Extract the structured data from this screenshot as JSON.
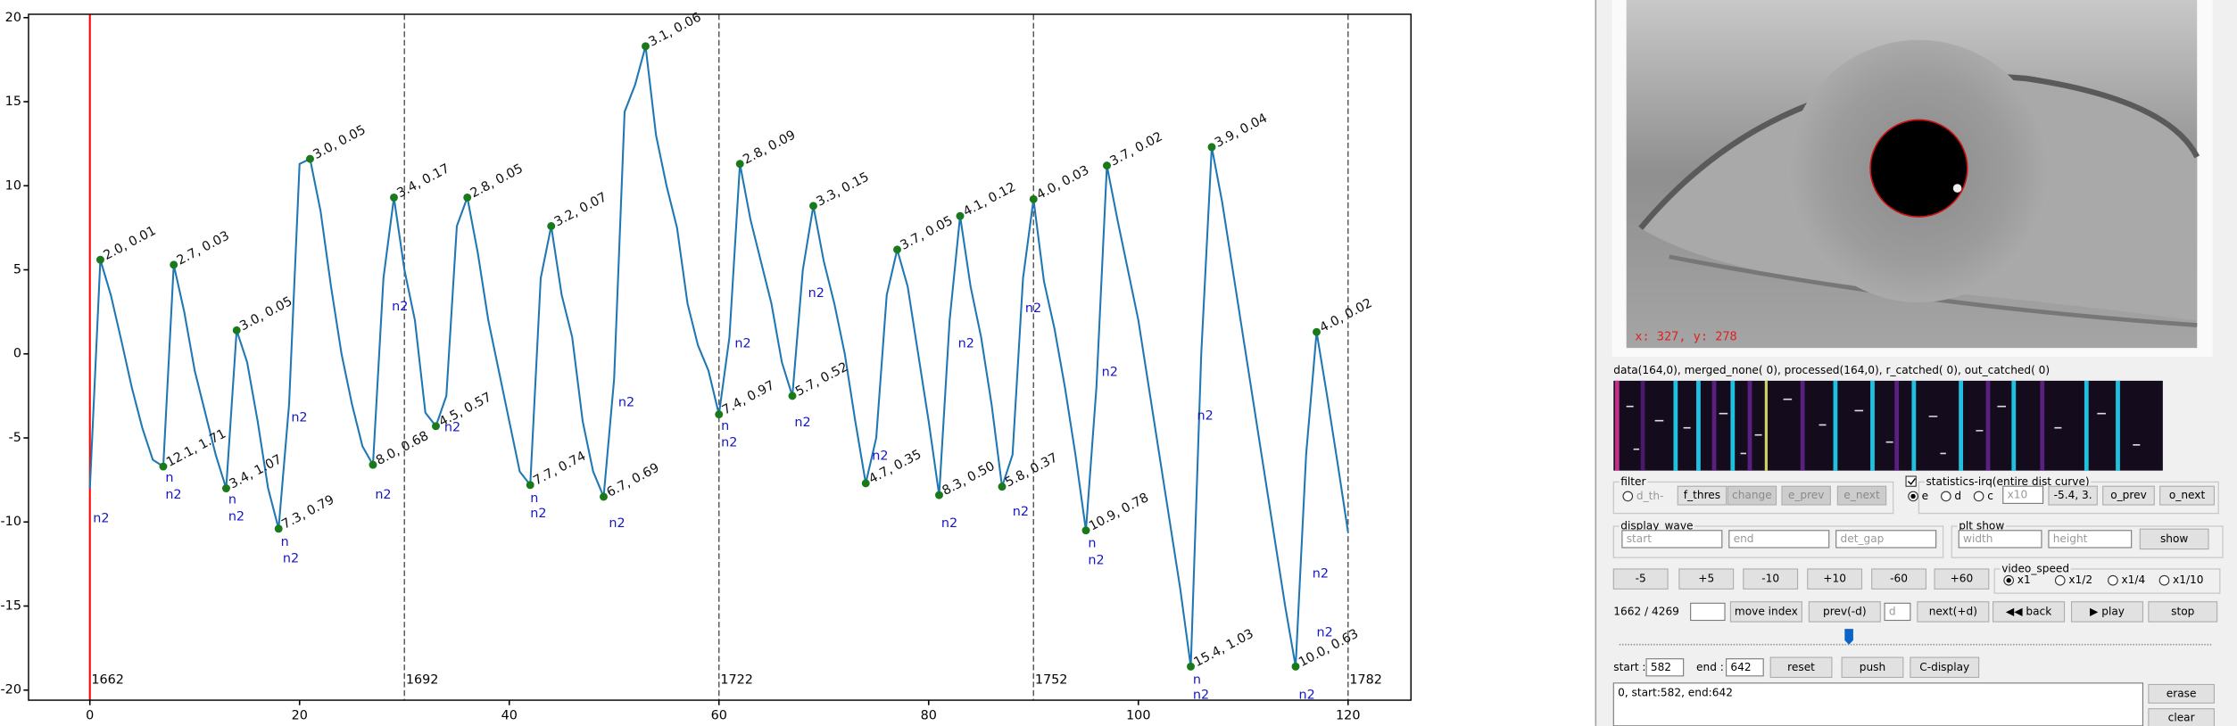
{
  "chart_data": {
    "type": "line",
    "x": [
      0,
      1,
      2,
      3,
      4,
      5,
      6,
      7,
      8,
      9,
      10,
      11,
      12,
      13,
      14,
      15,
      16,
      17,
      18,
      19,
      20,
      21,
      22,
      23,
      24,
      25,
      26,
      27,
      28,
      29,
      30,
      31,
      32,
      33,
      34,
      35,
      36,
      37,
      38,
      39,
      40,
      41,
      42,
      43,
      44,
      45,
      46,
      47,
      48,
      49,
      50,
      51,
      52,
      53,
      54,
      55,
      56,
      57,
      58,
      59,
      60,
      61,
      62,
      63,
      64,
      65,
      66,
      67,
      68,
      69,
      70,
      71,
      72,
      73,
      74,
      75,
      76,
      77,
      78,
      79,
      80,
      81,
      82,
      83,
      84,
      85,
      86,
      87,
      88,
      89,
      90,
      91,
      92,
      93,
      94,
      95,
      96,
      97,
      98,
      99,
      100,
      101,
      102,
      103,
      104,
      105,
      106,
      107,
      108,
      109,
      110,
      111,
      112,
      113,
      114,
      115,
      116,
      117,
      118,
      119,
      120
    ],
    "values": [
      -8,
      5.6,
      3.5,
      0.8,
      -2,
      -4.4,
      -6.3,
      -6.7,
      5.3,
      2.5,
      -1,
      -3.5,
      -6,
      -8,
      1.4,
      -0.5,
      -4,
      -8,
      -10.4,
      -3,
      11.3,
      11.6,
      8.5,
      4,
      0,
      -3,
      -5.5,
      -6.6,
      4.5,
      9.3,
      5,
      2,
      -3.5,
      -4.3,
      -2.5,
      7.6,
      9.3,
      6,
      2,
      -1,
      -4,
      -7,
      -7.8,
      4.5,
      7.6,
      3.5,
      1,
      -4,
      -7,
      -8.5,
      -1.5,
      14.4,
      16,
      18.3,
      13,
      10,
      7.5,
      3,
      0.5,
      -1,
      -3.6,
      1,
      11.3,
      8,
      5.5,
      3,
      -0.5,
      -2.5,
      5,
      8.8,
      5.5,
      3,
      0,
      -4,
      -7.7,
      -5,
      3.5,
      6.2,
      4,
      0,
      -4,
      -8.4,
      2,
      8.2,
      4,
      1,
      -3,
      -7.9,
      -6,
      4.5,
      9.2,
      4.3,
      1.5,
      -2,
      -6,
      -10.5,
      -2,
      11.2,
      8,
      5,
      2,
      -2,
      -6,
      -10,
      -14,
      -18.6,
      0,
      12.3,
      9,
      5,
      1,
      -3,
      -7,
      -11,
      -15,
      -18.6,
      -6,
      1.3,
      -2.5,
      -6.5,
      -10.6
    ],
    "color": "#1f77b4",
    "xlim": [
      -5.85,
      126
    ],
    "ylim": [
      -20.6,
      20.2
    ],
    "xticks": [
      0,
      20,
      40,
      60,
      80,
      100,
      120
    ],
    "yticks": [
      -20,
      -15,
      -10,
      -5,
      0,
      5,
      10,
      15,
      20
    ],
    "marker_color": "#1a7a1a",
    "markers": [
      {
        "x": 1,
        "y": 5.6,
        "label": "2.0, 0.01"
      },
      {
        "x": 7,
        "y": -6.7,
        "label": "12.1, 1.71"
      },
      {
        "x": 8,
        "y": 5.3,
        "label": "2.7, 0.03"
      },
      {
        "x": 13,
        "y": -8,
        "label": "3.4, 1.07"
      },
      {
        "x": 14,
        "y": 1.4,
        "label": "3.0, 0.05"
      },
      {
        "x": 18,
        "y": -10.4,
        "label": "7.3, 0.79"
      },
      {
        "x": 21,
        "y": 11.6,
        "label": "3.0, 0.05"
      },
      {
        "x": 27,
        "y": -6.6,
        "label": "8.0, 0.68"
      },
      {
        "x": 29,
        "y": 9.3,
        "label": "3.4, 0.17"
      },
      {
        "x": 33,
        "y": -4.3,
        "label": "4.5, 0.57"
      },
      {
        "x": 36,
        "y": 9.3,
        "label": "2.8, 0.05"
      },
      {
        "x": 42,
        "y": -7.8,
        "label": "7.7, 0.74"
      },
      {
        "x": 44,
        "y": 7.6,
        "label": "3.2, 0.07"
      },
      {
        "x": 49,
        "y": -8.5,
        "label": "6.7, 0.69"
      },
      {
        "x": 53,
        "y": 18.3,
        "label": "3.1, 0.06"
      },
      {
        "x": 60,
        "y": -3.6,
        "label": "7.4, 0.97"
      },
      {
        "x": 62,
        "y": 11.3,
        "label": "2.8, 0.09"
      },
      {
        "x": 67,
        "y": -2.5,
        "label": "5.7, 0.52"
      },
      {
        "x": 69,
        "y": 8.8,
        "label": "3.3, 0.15"
      },
      {
        "x": 74,
        "y": -7.7,
        "label": "4.7, 0.35"
      },
      {
        "x": 77,
        "y": 6.2,
        "label": "3.7, 0.05"
      },
      {
        "x": 81,
        "y": -8.4,
        "label": "8.3, 0.50"
      },
      {
        "x": 83,
        "y": 8.2,
        "label": "4.1, 0.12"
      },
      {
        "x": 87,
        "y": -7.9,
        "label": "5.8, 0.37"
      },
      {
        "x": 90,
        "y": 9.2,
        "label": "4.0, 0.03"
      },
      {
        "x": 95,
        "y": -10.5,
        "label": "10.9, 0.78"
      },
      {
        "x": 97,
        "y": 11.2,
        "label": "3.7, 0.02"
      },
      {
        "x": 105,
        "y": -18.6,
        "label": "15.4, 1.03"
      },
      {
        "x": 107,
        "y": 12.3,
        "label": "3.9, 0.04"
      },
      {
        "x": 115,
        "y": -18.6,
        "label": "10.0, 0.63"
      },
      {
        "x": 117,
        "y": 1.3,
        "label": "4.0, 0.02"
      }
    ],
    "annotation_color": "#1515c8",
    "annotations": [
      {
        "text": "n2",
        "x": 0.3,
        "y": -9.8
      },
      {
        "text": "n",
        "x": 7.2,
        "y": -7.4
      },
      {
        "text": "n2",
        "x": 7.2,
        "y": -8.4
      },
      {
        "text": "n",
        "x": 13.2,
        "y": -8.7
      },
      {
        "text": "n2",
        "x": 13.2,
        "y": -9.7
      },
      {
        "text": "n",
        "x": 18.2,
        "y": -11.2
      },
      {
        "text": "n2",
        "x": 18.4,
        "y": -12.2
      },
      {
        "text": "n2",
        "x": 19.2,
        "y": -3.8
      },
      {
        "text": "n2",
        "x": 27.2,
        "y": -8.4
      },
      {
        "text": "n2",
        "x": 28.8,
        "y": 2.8
      },
      {
        "text": "n2",
        "x": 33.8,
        "y": -4.4
      },
      {
        "text": "n",
        "x": 42,
        "y": -8.6
      },
      {
        "text": "n2",
        "x": 42,
        "y": -9.5
      },
      {
        "text": "n2",
        "x": 49.5,
        "y": -10.1
      },
      {
        "text": "n2",
        "x": 50.4,
        "y": -2.9
      },
      {
        "text": "n",
        "x": 60.2,
        "y": -4.3
      },
      {
        "text": "n2",
        "x": 60.2,
        "y": -5.3
      },
      {
        "text": "n2",
        "x": 61.5,
        "y": 0.6
      },
      {
        "text": "n2",
        "x": 67.2,
        "y": -4.1
      },
      {
        "text": "n2",
        "x": 68.5,
        "y": 3.6
      },
      {
        "text": "n2",
        "x": 74.6,
        "y": -6.1
      },
      {
        "text": "n2",
        "x": 81.2,
        "y": -10.1
      },
      {
        "text": "n2",
        "x": 82.8,
        "y": 0.6
      },
      {
        "text": "n2",
        "x": 88,
        "y": -9.4
      },
      {
        "text": "n2",
        "x": 89.2,
        "y": 2.7
      },
      {
        "text": "n",
        "x": 95.2,
        "y": -11.3
      },
      {
        "text": "n2",
        "x": 95.2,
        "y": -12.3
      },
      {
        "text": "n2",
        "x": 96.5,
        "y": -1.1
      },
      {
        "text": "n",
        "x": 105.2,
        "y": -19.4
      },
      {
        "text": "n2",
        "x": 105.2,
        "y": -20.3
      },
      {
        "text": "n2",
        "x": 105.6,
        "y": -3.7
      },
      {
        "text": "n2",
        "x": 115.3,
        "y": -20.3
      },
      {
        "text": "n2",
        "x": 116.6,
        "y": -13.1
      },
      {
        "text": "n2",
        "x": 117,
        "y": -16.6
      }
    ],
    "vlines": [
      {
        "x": 0,
        "label": "1662",
        "color": "#ff0000",
        "style": "solid"
      },
      {
        "x": 30,
        "label": "1692",
        "color": "#555555",
        "style": "dashed"
      },
      {
        "x": 60,
        "label": "1722",
        "color": "#555555",
        "style": "dashed"
      },
      {
        "x": 90,
        "label": "1752",
        "color": "#555555",
        "style": "dashed"
      },
      {
        "x": 120,
        "label": "1782",
        "color": "#555555",
        "style": "dashed"
      }
    ]
  },
  "ui": {
    "eye_coords": "x: 327, y: 278",
    "status": "data(164,0), merged_none(    0), processed(164,0), r_catched(    0), out_catched(    0)",
    "filter": {
      "title": "filter",
      "radio": "d_th-",
      "buttons": [
        "f_thres",
        "change",
        "e_prev",
        "e_next"
      ]
    },
    "statistics": {
      "title": "statistics-irq(entire dist curve)",
      "radios": [
        "e",
        "d",
        "c"
      ],
      "input": "x10",
      "buttons": [
        "-5.4, 3.",
        "o_prev",
        "o_next"
      ]
    },
    "display_wave": {
      "title": "display_wave",
      "inputs": [
        "start",
        "end",
        "det_gap"
      ]
    },
    "plt_show": {
      "title": "plt show",
      "inputs": [
        "width",
        "height"
      ],
      "button": "show"
    },
    "steps": [
      "-5",
      "+5",
      "-10",
      "+10",
      "-60",
      "+60"
    ],
    "video_speed": {
      "title": "video_speed",
      "radios": [
        "x1",
        "x1/2",
        "x1/4",
        "x1/10"
      ]
    },
    "index": "1662 / 4269",
    "nav": {
      "move": "move index",
      "prev": "prev(-d)",
      "d": "d",
      "next": "next(+d)",
      "back": "◀◀ back",
      "play": "▶ play",
      "stop": "stop"
    },
    "range": {
      "start_label": "start :",
      "start": "582",
      "end_label": "end :",
      "end": "642",
      "buttons": [
        "reset",
        "push",
        "C-display"
      ]
    },
    "log": [
      "0, start:582, end:642"
    ],
    "log_buttons": [
      "erase",
      "clear"
    ]
  }
}
